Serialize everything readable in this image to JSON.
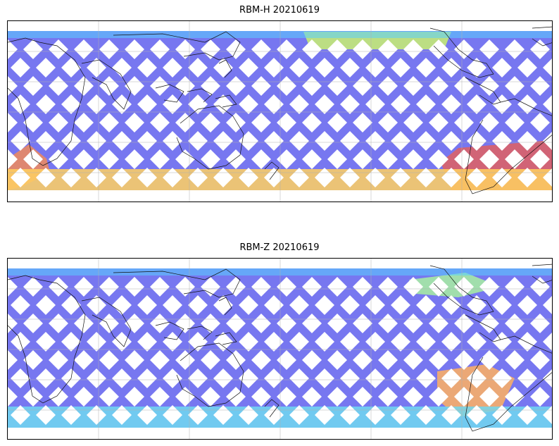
{
  "panels": [
    {
      "title": "RBM-H 20210619",
      "base_color": "#6868ee",
      "hotspots": [
        {
          "zone": "south-america-southern-ocean",
          "color": "#e06060",
          "level": "high"
        },
        {
          "zone": "south-africa",
          "color": "#f08a5a",
          "level": "high"
        },
        {
          "zone": "southern-ocean-band",
          "color": "#ffd060",
          "level": "medium"
        },
        {
          "zone": "north-pacific-band",
          "color": "#c8f070",
          "level": "medium"
        }
      ]
    },
    {
      "title": "RBM-Z 20210619",
      "base_color": "#6868ee",
      "hotspots": [
        {
          "zone": "south-atlantic",
          "color": "#ffb060",
          "level": "medium"
        },
        {
          "zone": "southern-ocean-band",
          "color": "#70d8f0",
          "level": "low"
        },
        {
          "zone": "north-america-band",
          "color": "#a8f0a0",
          "level": "low"
        }
      ]
    }
  ]
}
